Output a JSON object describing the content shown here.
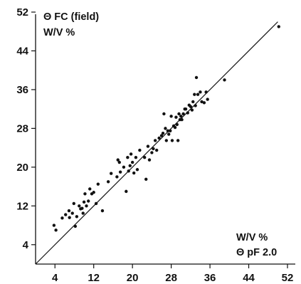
{
  "chart_data": {
    "type": "scatter",
    "title": "",
    "ylabel": [
      "Θ FC (field)",
      "W/V %"
    ],
    "xlabel": [
      "W/V %",
      "Θ pF 2.0"
    ],
    "xlim": [
      0,
      52
    ],
    "ylim": [
      0,
      52
    ],
    "xticks": [
      4,
      12,
      20,
      28,
      36,
      44,
      52
    ],
    "yticks": [
      4,
      12,
      20,
      28,
      36,
      44,
      52
    ],
    "grid": false,
    "reference_line": {
      "type": "1:1",
      "from": [
        0,
        0
      ],
      "to": [
        50,
        50
      ]
    },
    "points": [
      [
        3.8,
        8.0
      ],
      [
        4.2,
        7.0
      ],
      [
        5.5,
        9.5
      ],
      [
        6.2,
        10.2
      ],
      [
        6.9,
        11.0
      ],
      [
        7.0,
        9.6
      ],
      [
        7.6,
        10.5
      ],
      [
        7.9,
        12.5
      ],
      [
        8.2,
        7.8
      ],
      [
        8.5,
        9.8
      ],
      [
        9.0,
        12.0
      ],
      [
        9.3,
        11.4
      ],
      [
        9.6,
        11.5
      ],
      [
        9.8,
        10.5
      ],
      [
        10.0,
        12.8
      ],
      [
        10.2,
        14.5
      ],
      [
        10.5,
        12.0
      ],
      [
        10.9,
        13.0
      ],
      [
        11.2,
        15.5
      ],
      [
        11.6,
        14.5
      ],
      [
        12.0,
        14.8
      ],
      [
        12.5,
        12.5
      ],
      [
        12.9,
        16.5
      ],
      [
        13.8,
        11.0
      ],
      [
        15.0,
        17.0
      ],
      [
        15.6,
        18.7
      ],
      [
        16.8,
        18.0
      ],
      [
        17.0,
        21.5
      ],
      [
        17.3,
        21.0
      ],
      [
        17.5,
        19.0
      ],
      [
        18.2,
        20.0
      ],
      [
        18.7,
        15.0
      ],
      [
        19.0,
        22.0
      ],
      [
        19.2,
        19.2
      ],
      [
        19.5,
        20.3
      ],
      [
        19.7,
        22.7
      ],
      [
        20.0,
        21.0
      ],
      [
        20.3,
        18.8
      ],
      [
        20.7,
        22.0
      ],
      [
        21.0,
        19.5
      ],
      [
        21.5,
        23.5
      ],
      [
        22.5,
        22.0
      ],
      [
        22.8,
        17.5
      ],
      [
        23.2,
        24.3
      ],
      [
        23.5,
        21.5
      ],
      [
        24.0,
        23.0
      ],
      [
        24.3,
        23.8
      ],
      [
        24.7,
        25.5
      ],
      [
        25.0,
        23.5
      ],
      [
        25.5,
        26.0
      ],
      [
        26.0,
        26.5
      ],
      [
        26.3,
        27.0
      ],
      [
        26.5,
        31.0
      ],
      [
        26.8,
        28.0
      ],
      [
        27.0,
        25.5
      ],
      [
        27.3,
        27.5
      ],
      [
        27.5,
        26.8
      ],
      [
        27.8,
        27.5
      ],
      [
        28.0,
        30.5
      ],
      [
        28.2,
        25.5
      ],
      [
        28.5,
        28.5
      ],
      [
        28.8,
        28.2
      ],
      [
        29.0,
        30.3
      ],
      [
        29.2,
        28.8
      ],
      [
        29.4,
        25.5
      ],
      [
        29.6,
        31.0
      ],
      [
        29.8,
        29.8
      ],
      [
        30.0,
        30.5
      ],
      [
        30.2,
        29.8
      ],
      [
        30.5,
        31.0
      ],
      [
        30.8,
        32.0
      ],
      [
        31.0,
        32.0
      ],
      [
        31.4,
        31.2
      ],
      [
        31.7,
        32.8
      ],
      [
        32.0,
        32.5
      ],
      [
        32.3,
        31.8
      ],
      [
        32.5,
        33.5
      ],
      [
        32.8,
        35.0
      ],
      [
        33.0,
        32.7
      ],
      [
        33.2,
        38.5
      ],
      [
        33.5,
        35.0
      ],
      [
        34.0,
        35.5
      ],
      [
        34.3,
        33.5
      ],
      [
        34.8,
        33.3
      ],
      [
        35.2,
        35.5
      ],
      [
        35.5,
        34.0
      ],
      [
        39.0,
        38.0
      ],
      [
        50.2,
        49.0
      ]
    ]
  }
}
